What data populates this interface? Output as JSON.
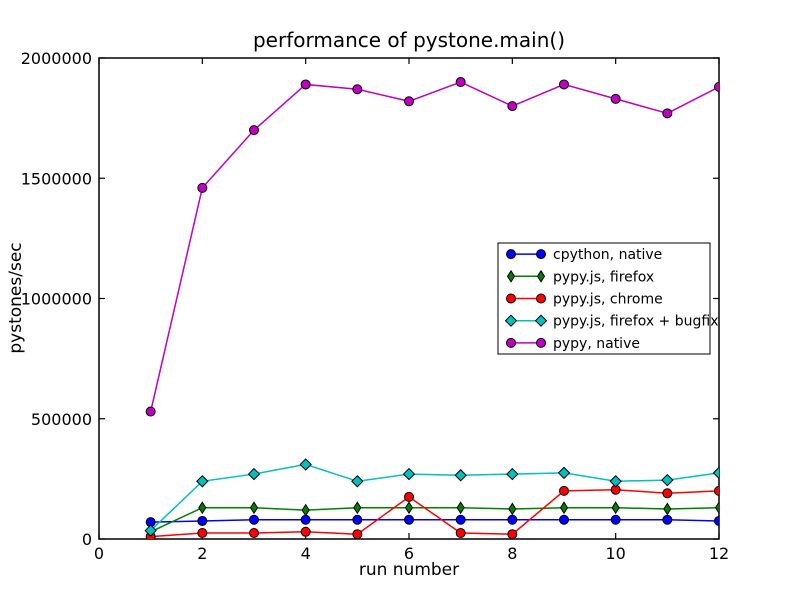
{
  "figure": {
    "title": "performance of pystone.main()",
    "xlabel": "run number",
    "ylabel": "pystones/sec"
  },
  "chart_data": {
    "type": "line",
    "title": "performance of pystone.main()",
    "xlabel": "run number",
    "ylabel": "pystones/sec",
    "x": [
      1,
      2,
      3,
      4,
      5,
      6,
      7,
      8,
      9,
      10,
      11,
      12
    ],
    "xlim": [
      0,
      12
    ],
    "ylim": [
      0,
      2000000
    ],
    "xticks": [
      0,
      2,
      4,
      6,
      8,
      10,
      12
    ],
    "xtick_labels": [
      "0",
      "2",
      "4",
      "6",
      "8",
      "10",
      "12"
    ],
    "yticks": [
      0,
      500000,
      1000000,
      1500000,
      2000000
    ],
    "ytick_labels": [
      "0",
      "500000",
      "1000000",
      "1500000",
      "2000000"
    ],
    "grid": false,
    "legend_position": "center right",
    "series": [
      {
        "name": "cpython, native",
        "color": "#0000ff",
        "marker": "circle",
        "values": [
          70000,
          75000,
          80000,
          80000,
          80000,
          80000,
          80000,
          80000,
          80000,
          80000,
          80000,
          75000
        ]
      },
      {
        "name": "pypy.js, firefox",
        "color": "#007f00",
        "marker": "thin-diamond",
        "values": [
          30000,
          130000,
          130000,
          120000,
          130000,
          130000,
          130000,
          125000,
          130000,
          130000,
          125000,
          130000
        ]
      },
      {
        "name": "pypy.js, chrome",
        "color": "#ff0000",
        "marker": "circle",
        "values": [
          10000,
          25000,
          25000,
          30000,
          20000,
          175000,
          25000,
          20000,
          200000,
          205000,
          190000,
          200000
        ]
      },
      {
        "name": "pypy.js, firefox + bugfix",
        "color": "#00bfbf",
        "marker": "diamond",
        "values": [
          35000,
          240000,
          270000,
          310000,
          240000,
          270000,
          265000,
          270000,
          275000,
          240000,
          245000,
          275000
        ]
      },
      {
        "name": "pypy, native",
        "color": "#bf00bf",
        "marker": "circle",
        "values": [
          530000,
          1460000,
          1700000,
          1890000,
          1870000,
          1820000,
          1900000,
          1800000,
          1890000,
          1830000,
          1770000,
          1880000
        ]
      }
    ]
  }
}
